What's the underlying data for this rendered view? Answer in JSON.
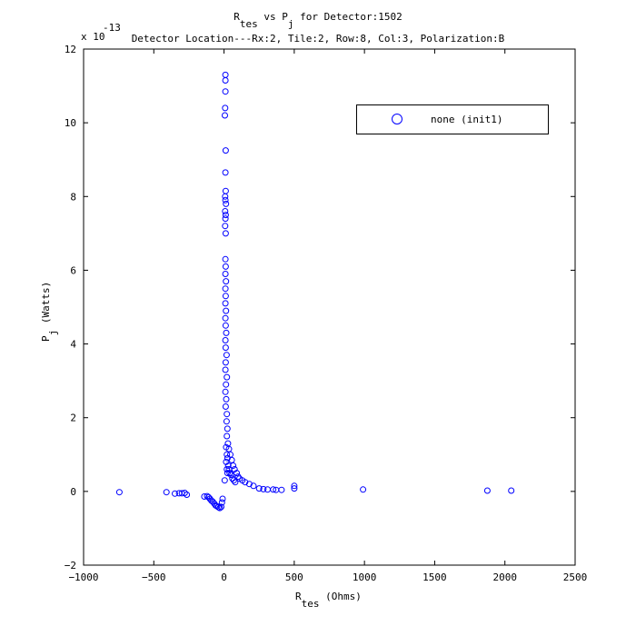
{
  "chart_data": {
    "type": "scatter",
    "title": {
      "line1_main": "R",
      "line1_sub": "tes",
      "line1_mid": " vs P",
      "line1_sub2": "j",
      "line1_end": " for Detector:1502",
      "line2": "Detector Location---Rx:2, Tile:2, Row:8, Col:3, Polarization:B"
    },
    "xlabel": {
      "main": "R",
      "sub": "tes",
      "rest": " (Ohms)"
    },
    "ylabel": {
      "main": "P",
      "sub": "j",
      "rest": " (Watts)"
    },
    "y_exponent": "x 10",
    "y_exponent_power": "-13",
    "xlim": [
      -1000,
      2500
    ],
    "ylim": [
      -2,
      12
    ],
    "xticks": [
      -1000,
      -500,
      0,
      500,
      1000,
      1500,
      2000,
      2500
    ],
    "yticks": [
      -2,
      0,
      2,
      4,
      6,
      8,
      10,
      12
    ],
    "grid": false,
    "legend_position": "top-right",
    "marker_color": "#0000ff",
    "series": [
      {
        "name": "none (init1)",
        "points": [
          [
            -745,
            -0.02
          ],
          [
            -410,
            -0.02
          ],
          [
            -350,
            -0.06
          ],
          [
            -320,
            -0.05
          ],
          [
            -300,
            -0.05
          ],
          [
            -280,
            -0.04
          ],
          [
            -265,
            -0.09
          ],
          [
            -140,
            -0.14
          ],
          [
            -120,
            -0.13
          ],
          [
            -110,
            -0.16
          ],
          [
            -100,
            -0.2
          ],
          [
            -90,
            -0.25
          ],
          [
            -80,
            -0.28
          ],
          [
            -70,
            -0.33
          ],
          [
            -60,
            -0.38
          ],
          [
            -50,
            -0.4
          ],
          [
            -40,
            -0.43
          ],
          [
            -30,
            -0.45
          ],
          [
            -20,
            -0.42
          ],
          [
            -15,
            -0.3
          ],
          [
            -10,
            -0.2
          ],
          [
            10,
            11.3
          ],
          [
            10,
            11.15
          ],
          [
            10,
            10.85
          ],
          [
            8,
            10.4
          ],
          [
            6,
            10.2
          ],
          [
            12,
            9.25
          ],
          [
            10,
            8.65
          ],
          [
            12,
            8.15
          ],
          [
            8,
            8.0
          ],
          [
            10,
            7.9
          ],
          [
            14,
            7.8
          ],
          [
            8,
            7.6
          ],
          [
            12,
            7.5
          ],
          [
            10,
            7.4
          ],
          [
            8,
            7.2
          ],
          [
            12,
            7.0
          ],
          [
            10,
            6.3
          ],
          [
            12,
            6.1
          ],
          [
            10,
            5.9
          ],
          [
            14,
            5.7
          ],
          [
            10,
            5.5
          ],
          [
            12,
            5.3
          ],
          [
            10,
            5.1
          ],
          [
            14,
            4.9
          ],
          [
            10,
            4.7
          ],
          [
            12,
            4.5
          ],
          [
            16,
            4.3
          ],
          [
            10,
            4.1
          ],
          [
            12,
            3.9
          ],
          [
            18,
            3.7
          ],
          [
            12,
            3.5
          ],
          [
            10,
            3.3
          ],
          [
            20,
            3.1
          ],
          [
            14,
            2.9
          ],
          [
            10,
            2.7
          ],
          [
            16,
            2.5
          ],
          [
            12,
            2.3
          ],
          [
            20,
            2.1
          ],
          [
            18,
            1.9
          ],
          [
            24,
            1.7
          ],
          [
            20,
            1.5
          ],
          [
            28,
            1.3
          ],
          [
            35,
            1.15
          ],
          [
            45,
            1.0
          ],
          [
            55,
            0.85
          ],
          [
            65,
            0.7
          ],
          [
            75,
            0.6
          ],
          [
            90,
            0.5
          ],
          [
            100,
            0.4
          ],
          [
            110,
            0.35
          ],
          [
            130,
            0.3
          ],
          [
            150,
            0.25
          ],
          [
            180,
            0.2
          ],
          [
            210,
            0.15
          ],
          [
            250,
            0.08
          ],
          [
            280,
            0.06
          ],
          [
            310,
            0.05
          ],
          [
            350,
            0.05
          ],
          [
            370,
            0.04
          ],
          [
            410,
            0.04
          ],
          [
            15,
            1.2
          ],
          [
            20,
            1.0
          ],
          [
            25,
            0.9
          ],
          [
            30,
            0.7
          ],
          [
            35,
            0.6
          ],
          [
            40,
            0.5
          ],
          [
            50,
            0.45
          ],
          [
            60,
            0.35
          ],
          [
            70,
            0.3
          ],
          [
            80,
            0.25
          ],
          [
            15,
            0.8
          ],
          [
            20,
            0.6
          ],
          [
            25,
            0.5
          ],
          [
            5,
            0.3
          ],
          [
            500,
            0.15
          ],
          [
            500,
            0.08
          ],
          [
            990,
            0.05
          ],
          [
            1875,
            0.02
          ],
          [
            2045,
            0.02
          ]
        ]
      }
    ]
  }
}
